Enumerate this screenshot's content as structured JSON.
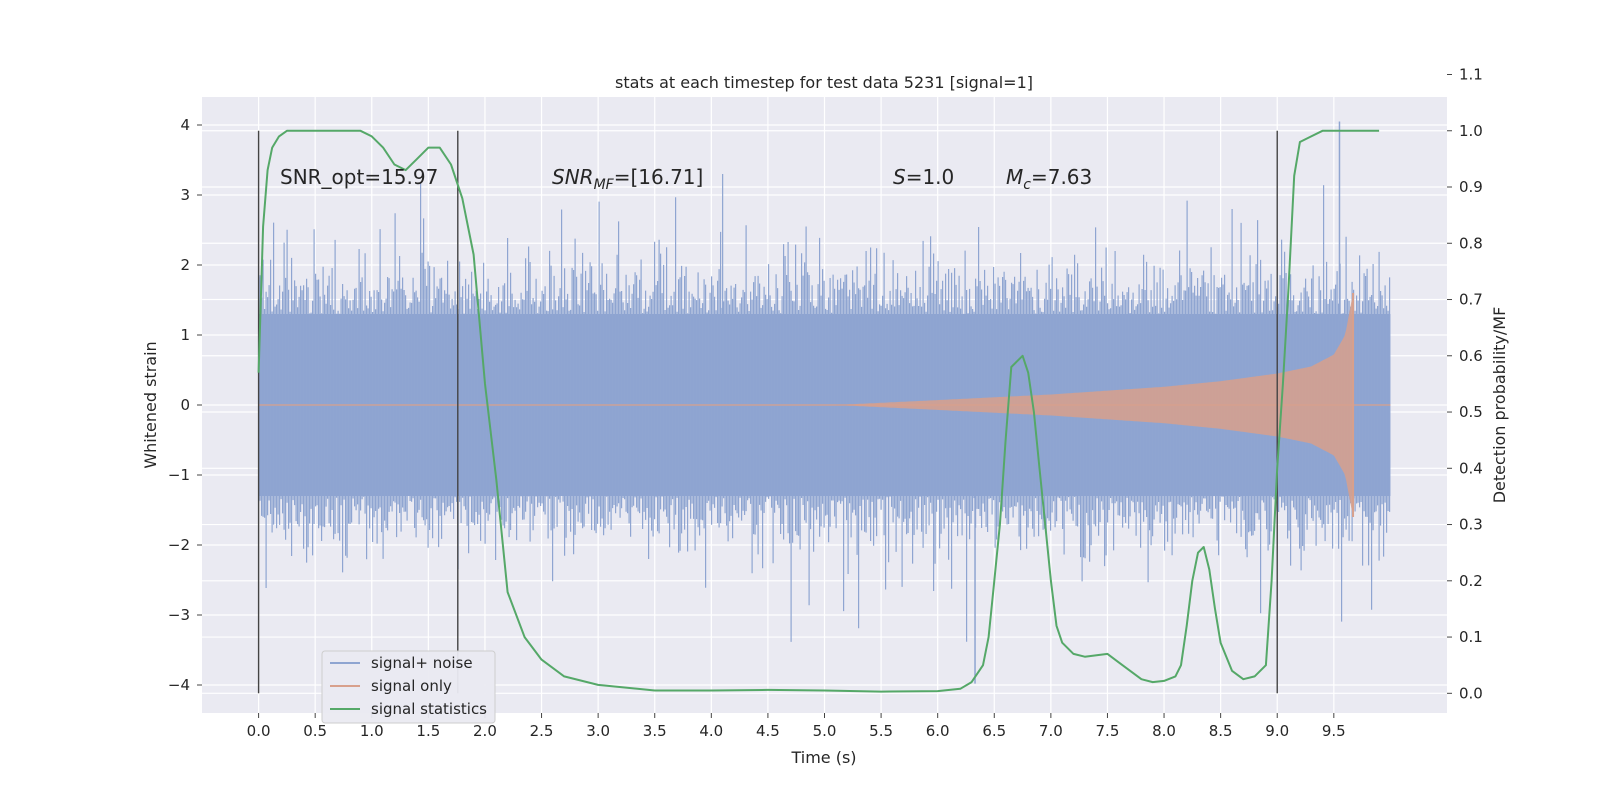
{
  "chart_data": {
    "type": "line",
    "title": "stats at each timestep for test data 5231 [signal=1]",
    "xlabel": "Time (s)",
    "ylabel_left": "Whitened strain",
    "ylabel_right": "Detection probability/MF",
    "xlim": [
      -0.5,
      10.5
    ],
    "ylim_left": [
      -4.4,
      4.4
    ],
    "ylim_right": [
      -0.035,
      1.06
    ],
    "x_ticks": [
      "0.0",
      "0.5",
      "1.0",
      "1.5",
      "2.0",
      "2.5",
      "3.0",
      "3.5",
      "4.0",
      "4.5",
      "5.0",
      "5.5",
      "6.0",
      "6.5",
      "7.0",
      "7.5",
      "8.0",
      "8.5",
      "9.0",
      "9.5"
    ],
    "y_left_ticks": [
      "4",
      "3",
      "2",
      "1",
      "0",
      "−1",
      "−2",
      "−3",
      "−4"
    ],
    "y_right_ticks": [
      "1.1",
      "1.0",
      "0.9",
      "0.8",
      "0.7",
      "0.6",
      "0.5",
      "0.4",
      "0.3",
      "0.2",
      "0.1",
      "0.0"
    ],
    "grid": true,
    "legend_placement": "lower-left",
    "annotations": {
      "snr_opt": "SNR_opt=15.97",
      "snr_mf_label": "SNR",
      "snr_mf_sub": "MF",
      "snr_mf_value": "=[16.71]",
      "s_label": "S",
      "s_value": "=1.0",
      "mc_label": "M",
      "mc_sub": "c",
      "mc_value": "=7.63"
    },
    "vertical_markers_x": [
      0.0,
      1.76,
      9.0
    ],
    "series": [
      {
        "name": "signal+ noise",
        "color": "#8fa5d1",
        "kind": "noise",
        "x_range": [
          0.0,
          10.0
        ],
        "typical_band": [
          -1.3,
          1.3
        ],
        "max_value": 4.05,
        "min_value": -3.98
      },
      {
        "name": "signal only",
        "color": "#d8a08c",
        "kind": "chirp",
        "x_range": [
          5.1,
          9.67
        ],
        "envelope": [
          [
            5.1,
            0.0
          ],
          [
            6.0,
            0.07
          ],
          [
            7.0,
            0.15
          ],
          [
            8.0,
            0.26
          ],
          [
            8.5,
            0.34
          ],
          [
            9.0,
            0.45
          ],
          [
            9.3,
            0.55
          ],
          [
            9.5,
            0.72
          ],
          [
            9.6,
            1.0
          ],
          [
            9.67,
            1.6
          ]
        ]
      },
      {
        "name": "signal statistics",
        "color": "#55a868",
        "kind": "probability",
        "x": [
          0.0,
          0.04,
          0.08,
          0.12,
          0.18,
          0.25,
          0.35,
          0.5,
          0.7,
          0.9,
          1.0,
          1.1,
          1.2,
          1.3,
          1.4,
          1.5,
          1.6,
          1.7,
          1.8,
          1.9,
          2.0,
          2.1,
          2.2,
          2.35,
          2.5,
          2.7,
          3.0,
          3.5,
          4.0,
          4.5,
          5.0,
          5.5,
          6.0,
          6.2,
          6.3,
          6.4,
          6.45,
          6.5,
          6.55,
          6.6,
          6.65,
          6.7,
          6.75,
          6.8,
          6.85,
          6.9,
          6.95,
          7.0,
          7.05,
          7.1,
          7.2,
          7.3,
          7.5,
          7.6,
          7.7,
          7.8,
          7.9,
          8.0,
          8.1,
          8.15,
          8.2,
          8.25,
          8.3,
          8.35,
          8.4,
          8.45,
          8.5,
          8.6,
          8.7,
          8.8,
          8.9,
          8.95,
          9.0,
          9.05,
          9.1,
          9.15,
          9.2,
          9.3,
          9.4,
          9.5,
          9.7,
          9.9
        ],
        "y": [
          0.57,
          0.83,
          0.93,
          0.97,
          0.99,
          1.0,
          1.0,
          1.0,
          1.0,
          1.0,
          0.99,
          0.97,
          0.94,
          0.93,
          0.95,
          0.97,
          0.97,
          0.94,
          0.88,
          0.78,
          0.55,
          0.38,
          0.18,
          0.1,
          0.06,
          0.03,
          0.015,
          0.005,
          0.005,
          0.006,
          0.005,
          0.003,
          0.004,
          0.008,
          0.02,
          0.05,
          0.1,
          0.2,
          0.3,
          0.45,
          0.58,
          0.59,
          0.6,
          0.57,
          0.5,
          0.4,
          0.3,
          0.2,
          0.12,
          0.09,
          0.07,
          0.065,
          0.07,
          0.055,
          0.04,
          0.025,
          0.02,
          0.022,
          0.03,
          0.05,
          0.12,
          0.2,
          0.25,
          0.26,
          0.22,
          0.15,
          0.09,
          0.04,
          0.025,
          0.03,
          0.05,
          0.2,
          0.4,
          0.55,
          0.72,
          0.92,
          0.98,
          0.99,
          1.0,
          1.0,
          1.0,
          1.0
        ]
      }
    ]
  }
}
